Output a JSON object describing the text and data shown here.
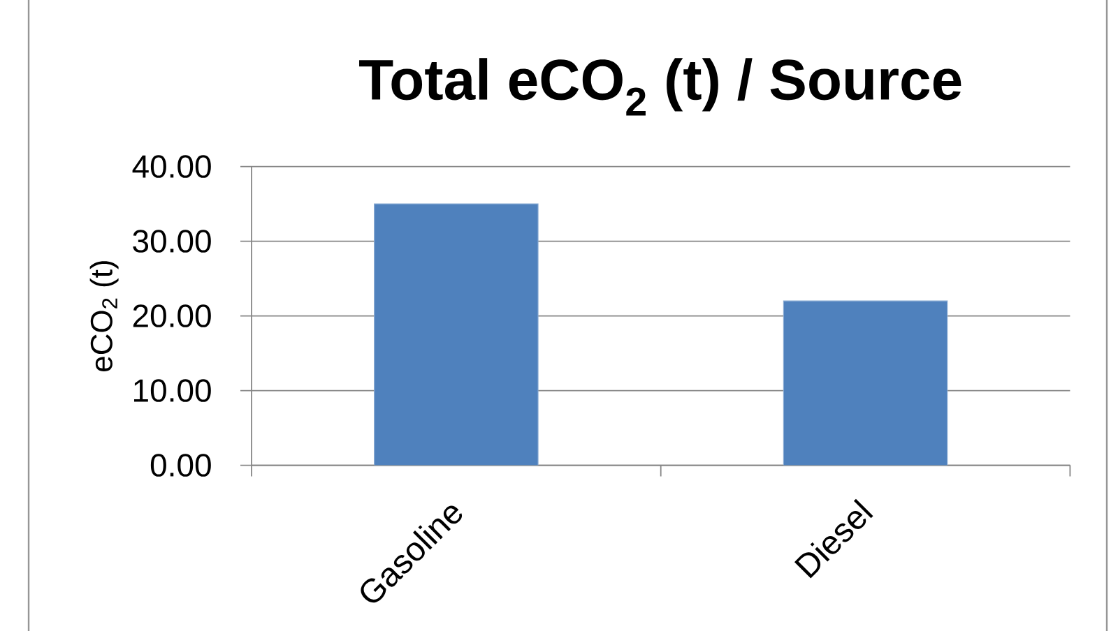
{
  "chart_data": {
    "type": "bar",
    "title": "Total eCO$_{2}$ (t) / Source",
    "ylabel": "eCO$_{2}$ (t)",
    "categories": [
      "Gasoline",
      "Diesel"
    ],
    "values": [
      35.0,
      22.0
    ],
    "color": "#4f81bd",
    "ylim": [
      0,
      40
    ],
    "yticks": [
      {
        "value": 0,
        "label": "0.00"
      },
      {
        "value": 10,
        "label": "10.00"
      },
      {
        "value": 20,
        "label": "20.00"
      },
      {
        "value": 30,
        "label": "30.00"
      },
      {
        "value": 40,
        "label": "40.00"
      }
    ],
    "grid": "y"
  }
}
